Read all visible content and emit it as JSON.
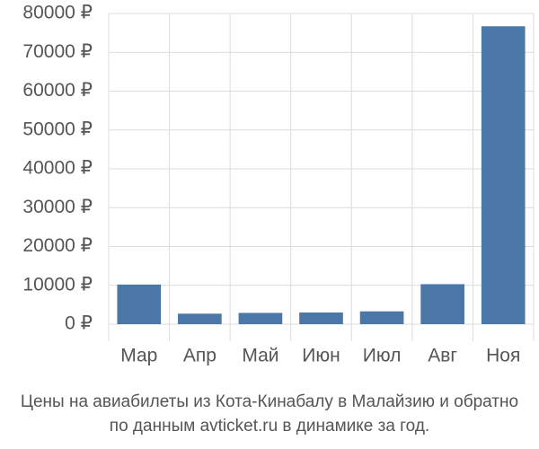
{
  "chart_data": {
    "type": "bar",
    "title": "Цены на авиабилеты из Кота-Кинабалу в Малайзию и обратно",
    "subtitle": "по данным avticket.ru в динамике за год.",
    "categories": [
      "Мар",
      "Апр",
      "Май",
      "Июн",
      "Июл",
      "Авг",
      "Ноя"
    ],
    "values": [
      10200,
      2700,
      2900,
      3000,
      3300,
      10300,
      76700
    ],
    "color": "#4a76a8",
    "ylim": [
      0,
      80000
    ],
    "yticks": [
      {
        "value": 0,
        "label": "0 ₽"
      },
      {
        "value": 10000,
        "label": "10000 ₽"
      },
      {
        "value": 20000,
        "label": "20000 ₽"
      },
      {
        "value": 30000,
        "label": "30000 ₽"
      },
      {
        "value": 40000,
        "label": "40000 ₽"
      },
      {
        "value": 50000,
        "label": "50000 ₽"
      },
      {
        "value": 60000,
        "label": "60000 ₽"
      },
      {
        "value": 70000,
        "label": "70000 ₽"
      },
      {
        "value": 80000,
        "label": "80000 ₽"
      }
    ],
    "grid": true
  }
}
